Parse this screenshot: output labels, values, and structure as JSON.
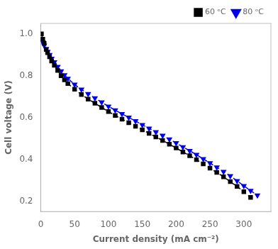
{
  "chart_data": {
    "type": "line",
    "x_label": "Current density (mA cm⁻²)",
    "y_label": "Cell voltage (V)",
    "xlim": [
      0,
      340
    ],
    "ylim": [
      0.15,
      1.05
    ],
    "xticks": [
      0,
      50,
      100,
      150,
      200,
      250,
      300
    ],
    "yticks": [
      0.2,
      0.4,
      0.6,
      0.8,
      {
        "value": 1.0,
        "label": "1.0"
      }
    ],
    "grid": false,
    "legend": "upper right",
    "series": [
      {
        "name": "60 ᵒC",
        "color": "black",
        "marker": "square",
        "line_style": "dashed",
        "x": [
          1,
          3,
          5,
          8,
          10,
          13,
          16,
          20,
          25,
          30,
          35,
          40,
          50,
          60,
          70,
          80,
          90,
          100,
          110,
          120,
          130,
          140,
          150,
          160,
          170,
          180,
          190,
          200,
          210,
          220,
          230,
          240,
          250,
          260,
          270,
          280,
          290,
          300,
          310
        ],
        "values": [
          1.0,
          0.975,
          0.955,
          0.925,
          0.91,
          0.89,
          0.87,
          0.85,
          0.825,
          0.8,
          0.78,
          0.762,
          0.735,
          0.71,
          0.688,
          0.668,
          0.648,
          0.628,
          0.61,
          0.592,
          0.575,
          0.558,
          0.541,
          0.524,
          0.507,
          0.49,
          0.472,
          0.454,
          0.435,
          0.417,
          0.398,
          0.378,
          0.358,
          0.337,
          0.316,
          0.293,
          0.27,
          0.245,
          0.218
        ]
      },
      {
        "name": "80 ᵒC",
        "color": "#0000ee",
        "marker": "triangle-down",
        "line_style": "dashed",
        "x": [
          1,
          3,
          5,
          8,
          10,
          13,
          16,
          20,
          25,
          30,
          35,
          40,
          50,
          60,
          70,
          80,
          90,
          100,
          110,
          120,
          130,
          140,
          150,
          160,
          170,
          180,
          190,
          200,
          210,
          220,
          230,
          240,
          250,
          260,
          270,
          280,
          290,
          300,
          310,
          320
        ],
        "values": [
          0.975,
          0.96,
          0.945,
          0.928,
          0.915,
          0.9,
          0.882,
          0.865,
          0.843,
          0.822,
          0.803,
          0.786,
          0.758,
          0.734,
          0.713,
          0.693,
          0.673,
          0.653,
          0.635,
          0.617,
          0.6,
          0.583,
          0.565,
          0.548,
          0.531,
          0.514,
          0.496,
          0.478,
          0.459,
          0.441,
          0.422,
          0.402,
          0.382,
          0.362,
          0.341,
          0.32,
          0.297,
          0.273,
          0.25,
          0.228
        ]
      }
    ]
  }
}
